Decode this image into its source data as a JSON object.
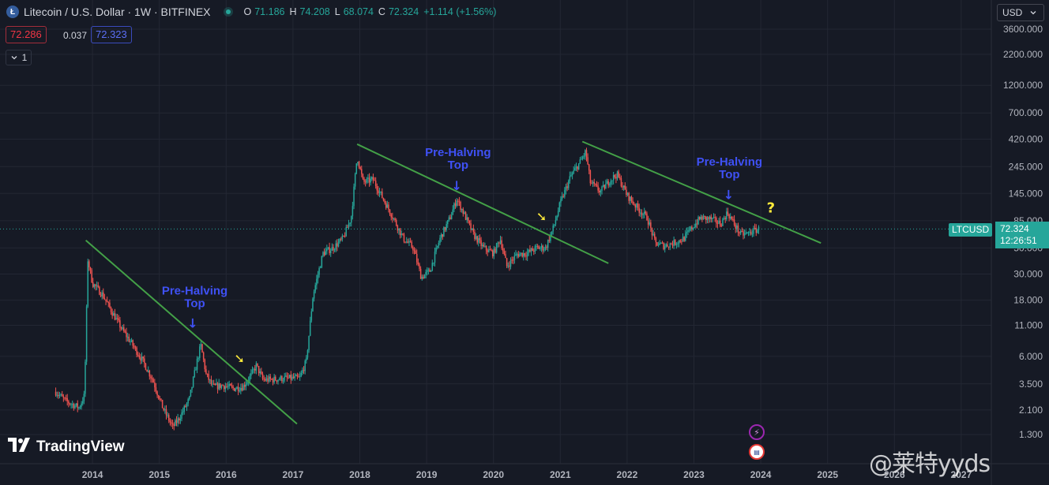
{
  "header": {
    "logo_letter": "Ł",
    "title": "Litecoin / U.S. Dollar · 1W · BITFINEX",
    "ohlc": [
      {
        "key": "O",
        "value": "71.186"
      },
      {
        "key": "H",
        "value": "74.208"
      },
      {
        "key": "L",
        "value": "68.074"
      },
      {
        "key": "C",
        "value": "72.324"
      }
    ],
    "change": "+1.114 (+1.56%)"
  },
  "quote": {
    "bid": "72.286",
    "spread": "0.037",
    "ask": "72.323"
  },
  "indicators_toggle": {
    "icon": "chevron-down-icon",
    "count": "1"
  },
  "currency_button": {
    "label": "USD",
    "icon": "chevron-down-icon"
  },
  "last_price": {
    "symbol": "LTCUSD",
    "price": "72.324",
    "countdown": "12:26:51"
  },
  "branding": {
    "logo_text": "TradingView"
  },
  "watermark": {
    "text": "@莱特yyds"
  },
  "colors": {
    "background": "#161a25",
    "grid": "#232733",
    "up": "#26a69a",
    "down": "#ef5350",
    "trendline": "#43a047",
    "annotation": "#3f51f5",
    "arrow": "#ffeb3b"
  },
  "chart_data": {
    "type": "candlestick",
    "title": "Litecoin / U.S. Dollar · 1W · BITFINEX",
    "y_scale": "log",
    "y_ticks": [
      "3600.000",
      "2200.000",
      "1200.000",
      "700.000",
      "420.000",
      "245.000",
      "145.000",
      "85.000",
      "50.000",
      "30.000",
      "18.000",
      "11.000",
      "6.000",
      "3.500",
      "2.100",
      "1.300"
    ],
    "x_ticks": [
      "2014",
      "2015",
      "2016",
      "2017",
      "2018",
      "2019",
      "2020",
      "2021",
      "2022",
      "2023",
      "2024",
      "2025",
      "2026",
      "2027"
    ],
    "price_path": [
      [
        2013.45,
        3.0
      ],
      [
        2013.6,
        2.5
      ],
      [
        2013.8,
        2.2
      ],
      [
        2013.88,
        2.8
      ],
      [
        2013.93,
        40
      ],
      [
        2014.0,
        25
      ],
      [
        2014.15,
        20
      ],
      [
        2014.3,
        14
      ],
      [
        2014.45,
        10
      ],
      [
        2014.6,
        7.5
      ],
      [
        2014.75,
        5.5
      ],
      [
        2014.9,
        3.8
      ],
      [
        2015.05,
        2.2
      ],
      [
        2015.2,
        1.5
      ],
      [
        2015.3,
        1.8
      ],
      [
        2015.45,
        2.6
      ],
      [
        2015.55,
        5.0
      ],
      [
        2015.62,
        7.5
      ],
      [
        2015.7,
        4.2
      ],
      [
        2015.8,
        3.3
      ],
      [
        2015.95,
        3.4
      ],
      [
        2016.1,
        3.2
      ],
      [
        2016.25,
        3.3
      ],
      [
        2016.38,
        4.2
      ],
      [
        2016.45,
        5.0
      ],
      [
        2016.55,
        3.8
      ],
      [
        2016.7,
        3.8
      ],
      [
        2016.85,
        3.9
      ],
      [
        2016.97,
        3.9
      ],
      [
        2017.1,
        3.9
      ],
      [
        2017.2,
        5.5
      ],
      [
        2017.3,
        20
      ],
      [
        2017.45,
        45
      ],
      [
        2017.6,
        50
      ],
      [
        2017.75,
        60
      ],
      [
        2017.87,
        90
      ],
      [
        2017.96,
        300
      ],
      [
        2018.05,
        180
      ],
      [
        2018.2,
        190
      ],
      [
        2018.35,
        130
      ],
      [
        2018.5,
        90
      ],
      [
        2018.65,
        60
      ],
      [
        2018.8,
        50
      ],
      [
        2018.92,
        28
      ],
      [
        2019.05,
        32
      ],
      [
        2019.2,
        60
      ],
      [
        2019.35,
        90
      ],
      [
        2019.45,
        130
      ],
      [
        2019.55,
        100
      ],
      [
        2019.7,
        65
      ],
      [
        2019.85,
        50
      ],
      [
        2020.0,
        45
      ],
      [
        2020.1,
        60
      ],
      [
        2020.2,
        35
      ],
      [
        2020.35,
        44
      ],
      [
        2020.5,
        45
      ],
      [
        2020.65,
        50
      ],
      [
        2020.78,
        50
      ],
      [
        2020.9,
        75
      ],
      [
        2021.0,
        120
      ],
      [
        2021.15,
        200
      ],
      [
        2021.3,
        270
      ],
      [
        2021.38,
        330
      ],
      [
        2021.45,
        180
      ],
      [
        2021.6,
        150
      ],
      [
        2021.75,
        190
      ],
      [
        2021.85,
        210
      ],
      [
        2022.0,
        140
      ],
      [
        2022.15,
        110
      ],
      [
        2022.3,
        90
      ],
      [
        2022.42,
        55
      ],
      [
        2022.55,
        52
      ],
      [
        2022.7,
        55
      ],
      [
        2022.85,
        60
      ],
      [
        2022.95,
        72
      ],
      [
        2023.1,
        90
      ],
      [
        2023.25,
        88
      ],
      [
        2023.4,
        80
      ],
      [
        2023.5,
        100
      ],
      [
        2023.6,
        80
      ],
      [
        2023.7,
        65
      ],
      [
        2023.8,
        66
      ],
      [
        2023.9,
        70
      ],
      [
        2023.98,
        72.3
      ]
    ],
    "trendlines": [
      {
        "from": [
          2013.9,
          58
        ],
        "to": [
          2017.06,
          1.6
        ]
      },
      {
        "from": [
          2017.96,
          380
        ],
        "to": [
          2021.72,
          37
        ]
      },
      {
        "from": [
          2021.33,
          400
        ],
        "to": [
          2024.9,
          55
        ]
      }
    ],
    "annotations": [
      {
        "text_lines": [
          "Pre-Halving",
          "Top"
        ],
        "at": [
          2015.53,
          20
        ]
      },
      {
        "text_lines": [
          "Pre-Halving",
          "Top"
        ],
        "at": [
          2019.47,
          300
        ]
      },
      {
        "text_lines": [
          "Pre-Halving",
          "Top"
        ],
        "at": [
          2023.53,
          250
        ]
      }
    ],
    "markers": [
      {
        "symbol": "↓",
        "at": [
          2015.5,
          10.5
        ],
        "color": "annotation"
      },
      {
        "symbol": "↓",
        "at": [
          2019.45,
          155
        ],
        "color": "annotation"
      },
      {
        "symbol": "↓",
        "at": [
          2023.52,
          130
        ],
        "color": "annotation"
      },
      {
        "symbol": "➘",
        "at": [
          2016.2,
          5.3
        ],
        "color": "arrow"
      },
      {
        "symbol": "➘",
        "at": [
          2020.72,
          85
        ],
        "color": "arrow"
      },
      {
        "symbol": "?",
        "at": [
          2024.15,
          100
        ],
        "color": "arrow"
      }
    ],
    "last_value": 72.324
  }
}
